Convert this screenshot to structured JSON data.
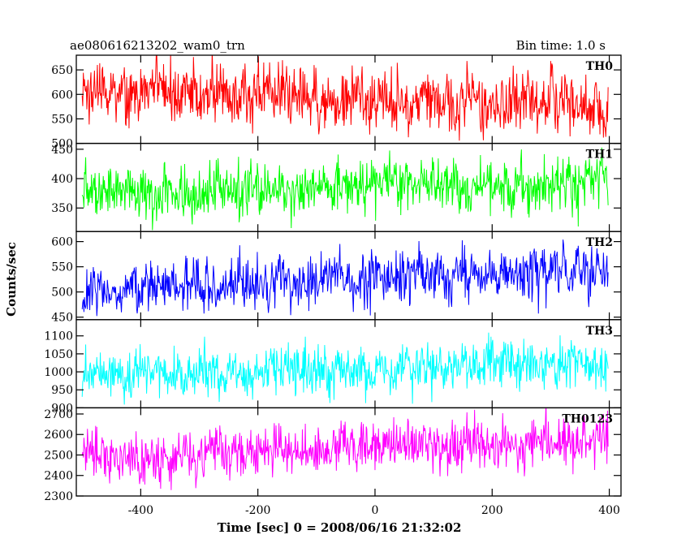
{
  "header": {
    "title": "ae080616213202_wam0_trn",
    "bin_time": "Bin time: 1.0 s"
  },
  "chart_data": {
    "type": "line",
    "xlabel": "Time [sec] 0 = 2008/06/16 21:32:02",
    "ylabel": "Counts/sec",
    "xlim": [
      -510,
      420
    ],
    "x_ticks": [
      -400,
      -200,
      0,
      200,
      400
    ],
    "x_step": 1,
    "x_range": [
      -500,
      398
    ],
    "grid": false,
    "panels": [
      {
        "name": "TH0",
        "color": "#ff0000",
        "ylim": [
          500,
          680
        ],
        "y_ticks": [
          500,
          550,
          600,
          650
        ],
        "mean_start": 610,
        "mean_end": 575,
        "noise": 30
      },
      {
        "name": "TH1",
        "color": "#00ff00",
        "ylim": [
          310,
          460
        ],
        "y_ticks": [
          350,
          400,
          450
        ],
        "mean_start": 372,
        "mean_end": 395,
        "noise": 22
      },
      {
        "name": "TH2",
        "color": "#0000ff",
        "ylim": [
          445,
          620
        ],
        "y_ticks": [
          450,
          500,
          550,
          600
        ],
        "mean_start": 505,
        "mean_end": 548,
        "noise": 26
      },
      {
        "name": "TH3",
        "color": "#00ffff",
        "ylim": [
          900,
          1145
        ],
        "y_ticks": [
          900,
          950,
          1000,
          1050,
          1100
        ],
        "mean_start": 990,
        "mean_end": 1025,
        "noise": 33
      },
      {
        "name": "TH0123",
        "color": "#ff00ff",
        "ylim": [
          2300,
          2730
        ],
        "y_ticks": [
          2300,
          2400,
          2500,
          2600,
          2700
        ],
        "mean_start": 2480,
        "mean_end": 2580,
        "noise": 60
      }
    ]
  }
}
